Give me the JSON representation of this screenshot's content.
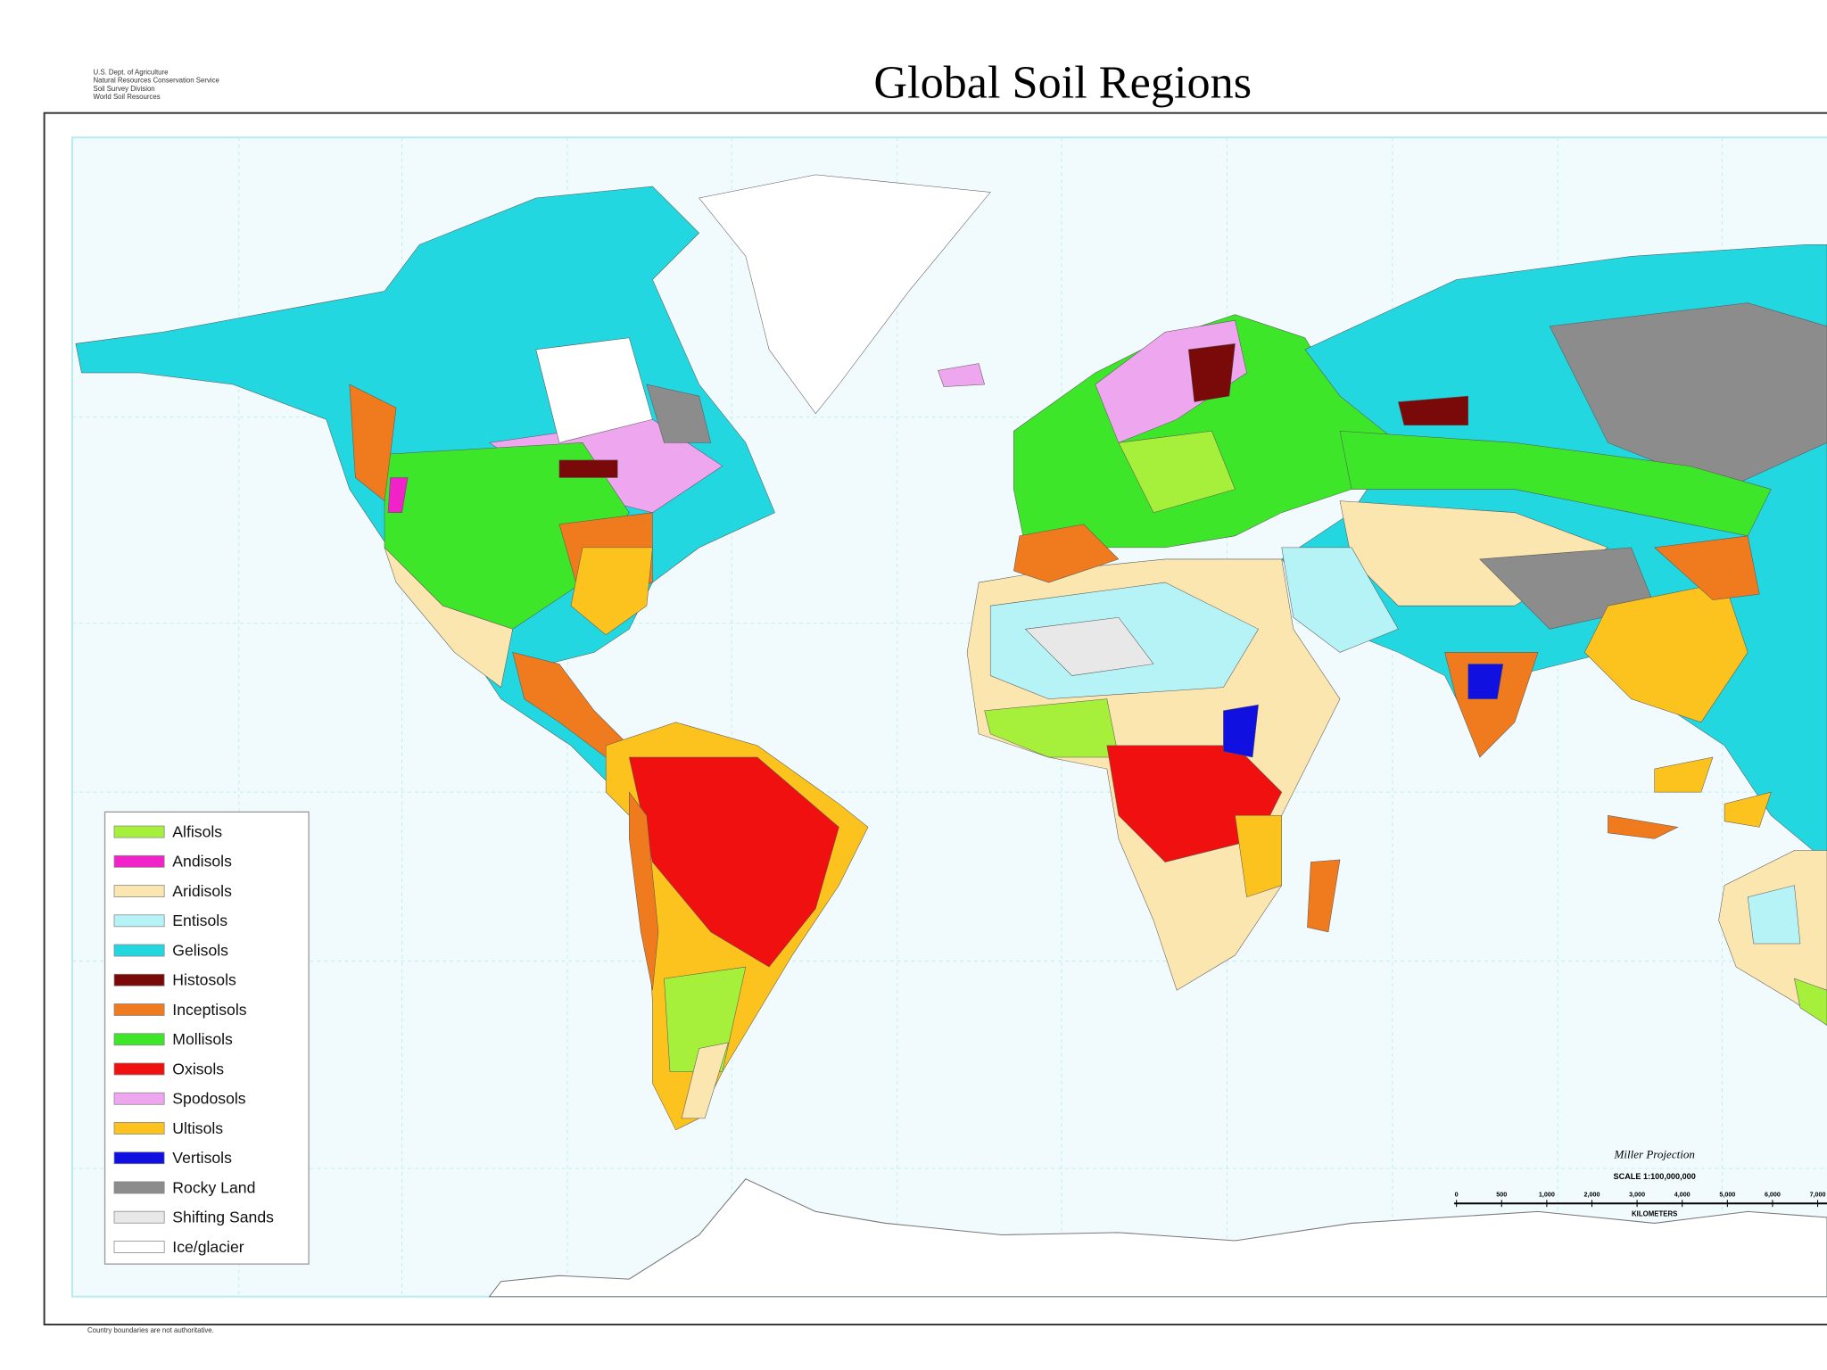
{
  "header": {
    "title": "Global Soil Regions",
    "agency": [
      "U.S. Dept. of Agriculture",
      "Natural Resources Conservation Service",
      "Soil Survey Division",
      "World Soil Resources"
    ]
  },
  "legend": {
    "items": [
      {
        "label": "Alfisols",
        "color": "#a6f03c"
      },
      {
        "label": "Andisols",
        "color": "#f022c8"
      },
      {
        "label": "Aridisols",
        "color": "#fbe6b0"
      },
      {
        "label": "Entisols",
        "color": "#b6f3f6"
      },
      {
        "label": "Gelisols",
        "color": "#22d7e0"
      },
      {
        "label": "Histosols",
        "color": "#7a0a0a"
      },
      {
        "label": "Inceptisols",
        "color": "#f07a1e"
      },
      {
        "label": "Mollisols",
        "color": "#3ee62a"
      },
      {
        "label": "Oxisols",
        "color": "#f01010"
      },
      {
        "label": "Spodosols",
        "color": "#eea6ee"
      },
      {
        "label": "Ultisols",
        "color": "#fcc21e"
      },
      {
        "label": "Vertisols",
        "color": "#1010e0"
      },
      {
        "label": "Rocky Land",
        "color": "#8c8c8c"
      },
      {
        "label": "Shifting Sands",
        "color": "#e8e8e8"
      },
      {
        "label": "Ice/glacier",
        "color": "#ffffff"
      }
    ]
  },
  "scale": {
    "projection": "Miller Projection",
    "ratio": "SCALE 1:100,000,000",
    "ticks": [
      "0",
      "500",
      "1,000",
      "2,000",
      "3,000",
      "4,000",
      "5,000",
      "6,000",
      "7,000"
    ],
    "unit": "KILOMETERS"
  },
  "footer": {
    "note": "Country boundaries are not authoritative."
  }
}
